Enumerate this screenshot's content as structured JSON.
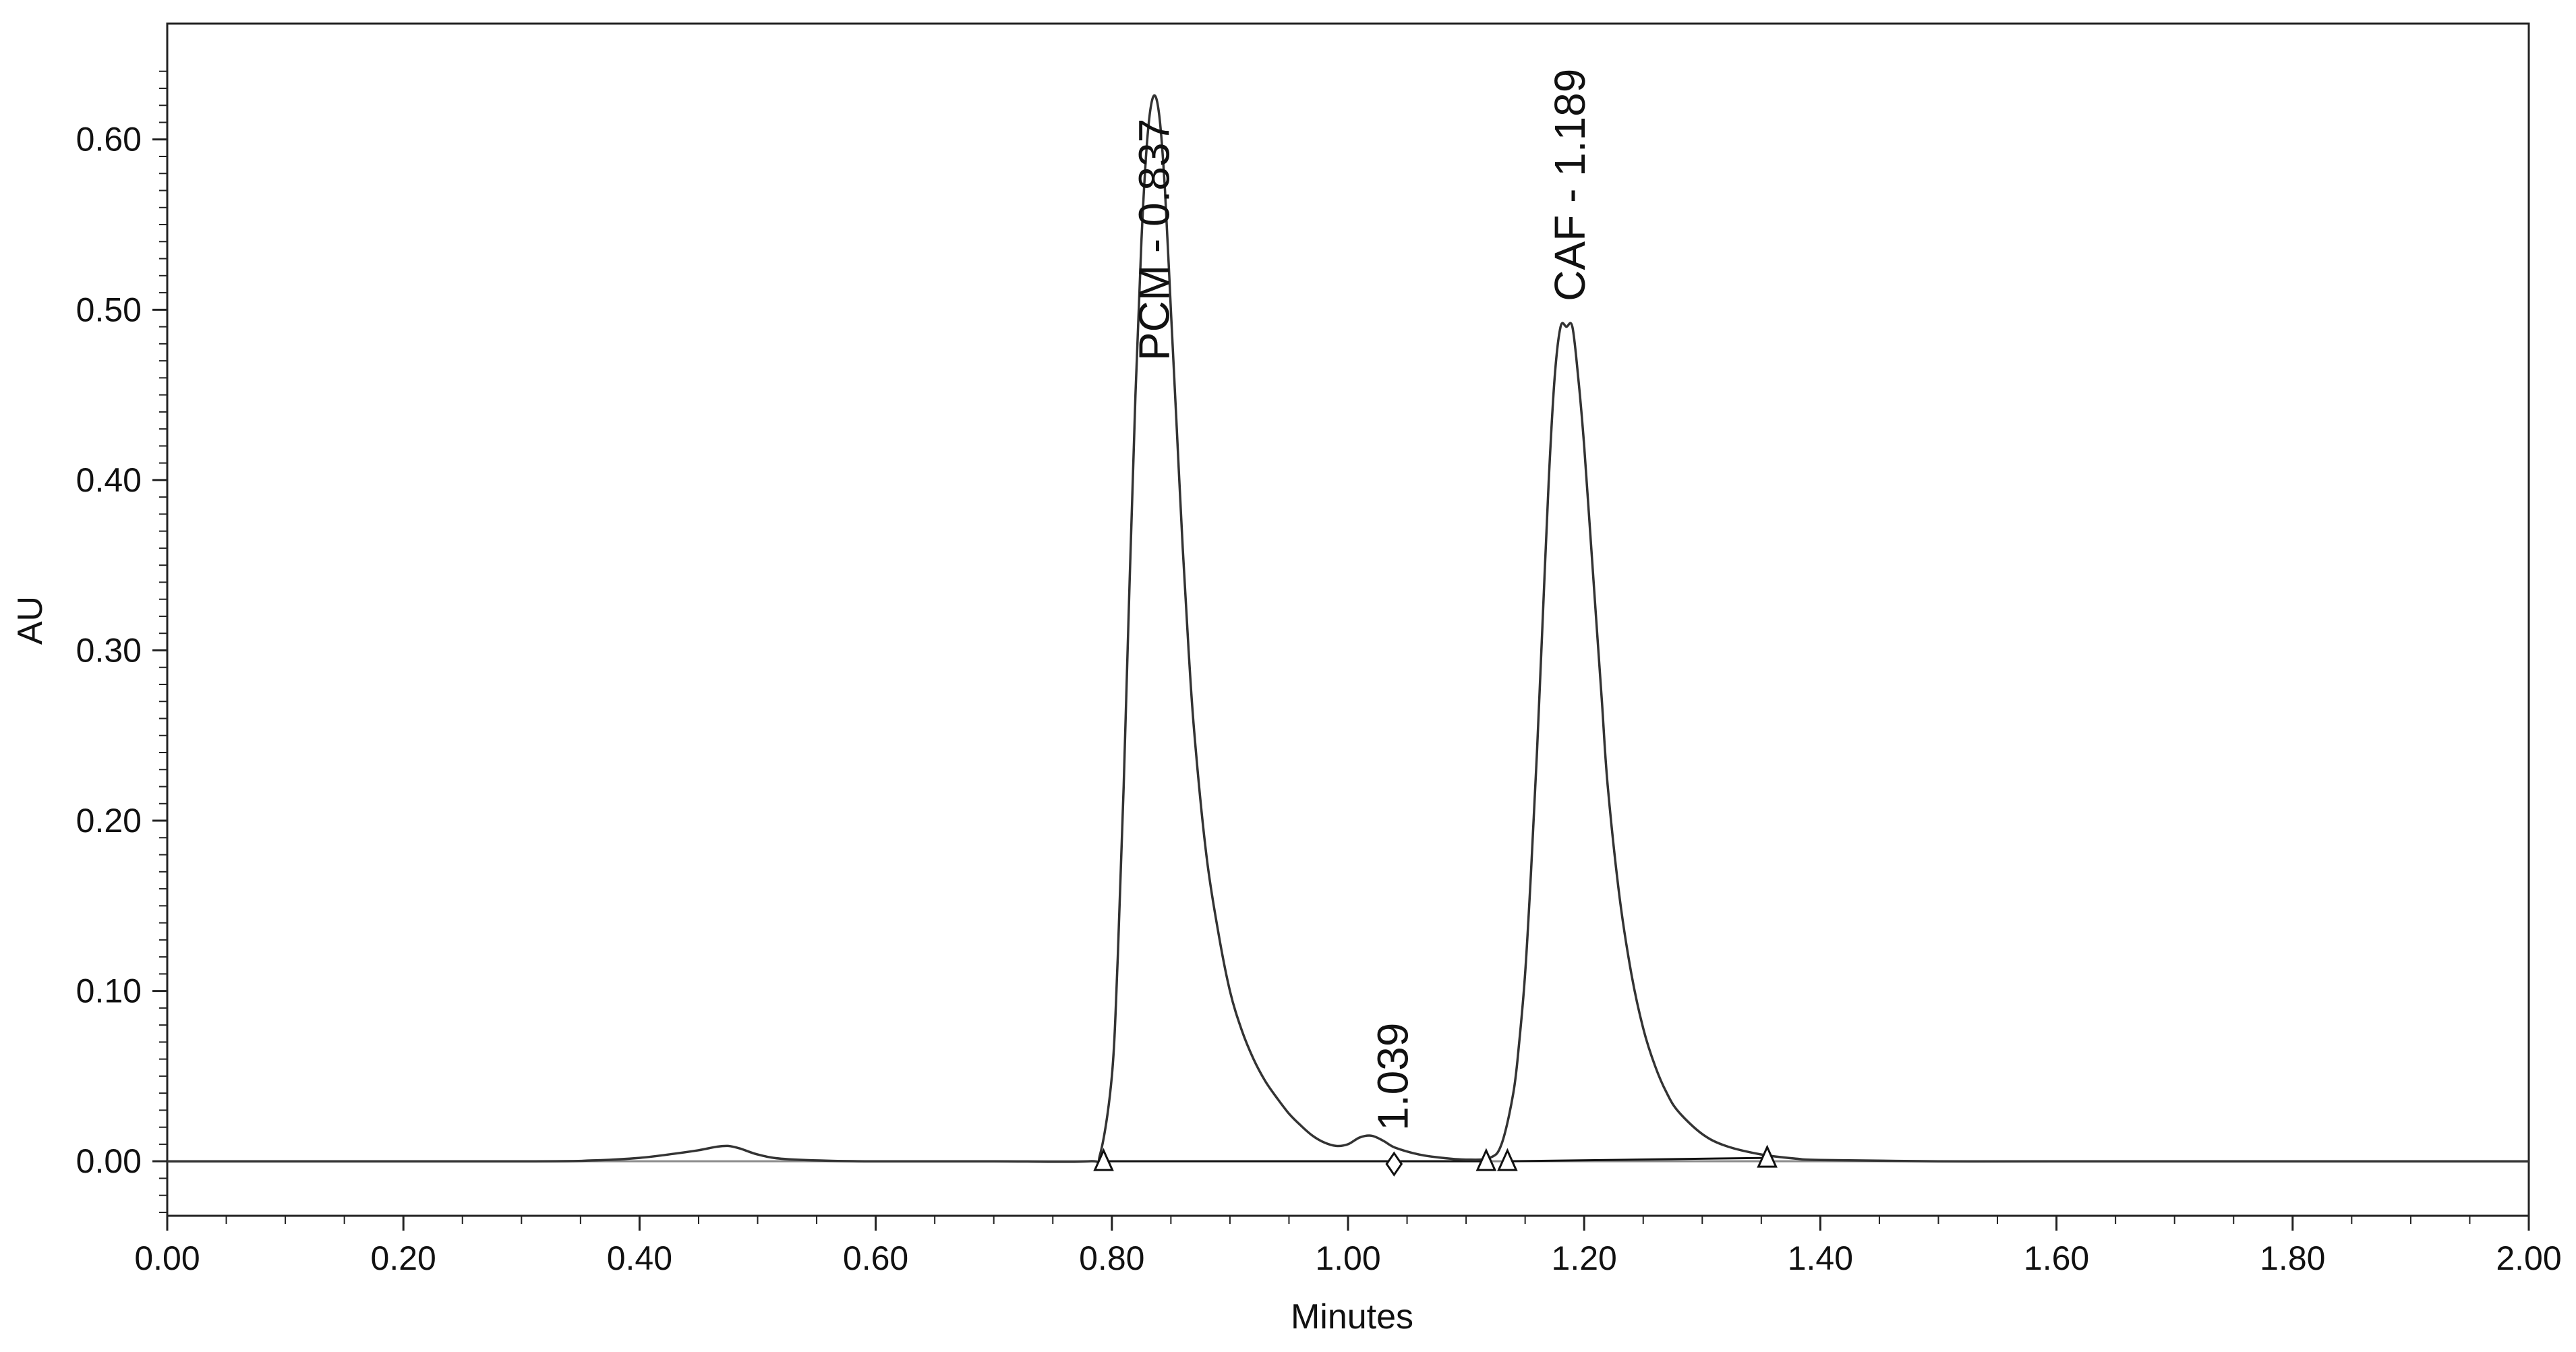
{
  "chart_data": {
    "type": "line",
    "xlabel": "Minutes",
    "ylabel": "AU",
    "xlim": [
      0.0,
      2.0
    ],
    "ylim": [
      -0.032,
      0.668
    ],
    "grid": false,
    "legend": "none",
    "x_ticks": [
      0.0,
      0.2,
      0.4,
      0.6,
      0.8,
      1.0,
      1.2,
      1.4,
      1.6,
      1.8,
      2.0
    ],
    "x_tick_labels": [
      "0.00",
      "0.20",
      "0.40",
      "0.60",
      "0.80",
      "1.00",
      "1.20",
      "1.40",
      "1.60",
      "1.80",
      "2.00"
    ],
    "y_ticks": [
      0.0,
      0.1,
      0.2,
      0.3,
      0.4,
      0.5,
      0.6
    ],
    "y_tick_labels": [
      "0.00",
      "0.10",
      "0.20",
      "0.30",
      "0.40",
      "0.50",
      "0.60"
    ],
    "series": [
      {
        "color": "#333333",
        "x": [
          0.0,
          0.3,
          0.36,
          0.4,
          0.43,
          0.45,
          0.465,
          0.475,
          0.485,
          0.5,
          0.52,
          0.56,
          0.6,
          0.7,
          0.78,
          0.79,
          0.8,
          0.805,
          0.81,
          0.815,
          0.82,
          0.825,
          0.83,
          0.835,
          0.84,
          0.845,
          0.85,
          0.855,
          0.86,
          0.865,
          0.87,
          0.88,
          0.89,
          0.9,
          0.91,
          0.92,
          0.93,
          0.94,
          0.95,
          0.96,
          0.97,
          0.98,
          0.99,
          1.0,
          1.01,
          1.02,
          1.03,
          1.04,
          1.06,
          1.08,
          1.1,
          1.12,
          1.13,
          1.14,
          1.145,
          1.15,
          1.155,
          1.16,
          1.165,
          1.17,
          1.175,
          1.18,
          1.185,
          1.19,
          1.195,
          1.2,
          1.205,
          1.21,
          1.215,
          1.22,
          1.23,
          1.24,
          1.25,
          1.26,
          1.27,
          1.28,
          1.3,
          1.32,
          1.35,
          1.38,
          1.4,
          1.5,
          1.6,
          1.8,
          2.0
        ],
        "y": [
          0.0,
          0.0,
          0.0005,
          0.002,
          0.0045,
          0.0065,
          0.0085,
          0.009,
          0.0075,
          0.004,
          0.0015,
          0.0003,
          0.0,
          0.0,
          0.0,
          0.004,
          0.05,
          0.12,
          0.22,
          0.34,
          0.45,
          0.54,
          0.6,
          0.625,
          0.615,
          0.57,
          0.5,
          0.43,
          0.36,
          0.3,
          0.25,
          0.18,
          0.135,
          0.1,
          0.077,
          0.06,
          0.047,
          0.037,
          0.028,
          0.021,
          0.015,
          0.011,
          0.009,
          0.01,
          0.014,
          0.015,
          0.012,
          0.008,
          0.004,
          0.002,
          0.001,
          0.002,
          0.01,
          0.04,
          0.07,
          0.11,
          0.17,
          0.24,
          0.32,
          0.4,
          0.46,
          0.49,
          0.49,
          0.49,
          0.46,
          0.42,
          0.37,
          0.32,
          0.27,
          0.22,
          0.155,
          0.11,
          0.078,
          0.056,
          0.04,
          0.029,
          0.016,
          0.009,
          0.004,
          0.0015,
          0.0008,
          0.0,
          0.0,
          0.0,
          0.0
        ]
      }
    ],
    "baselines": [
      {
        "x": [
          0.793,
          1.117
        ],
        "y": [
          0.0,
          0.0
        ]
      },
      {
        "x": [
          1.135,
          1.355
        ],
        "y": [
          0.0,
          0.002
        ]
      }
    ],
    "markers": [
      {
        "shape": "triangle",
        "x": 0.793,
        "y": 0.0
      },
      {
        "shape": "diamond",
        "x": 1.039,
        "y": 0.0
      },
      {
        "shape": "triangle",
        "x": 1.117,
        "y": 0.0
      },
      {
        "shape": "triangle",
        "x": 1.135,
        "y": 0.0
      },
      {
        "shape": "triangle",
        "x": 1.355,
        "y": 0.002
      }
    ],
    "peak_labels": [
      {
        "text": "PCM - 0.837",
        "x": 0.837,
        "y": 0.47
      },
      {
        "text": "1.039",
        "x": 1.039,
        "y": 0.018
      },
      {
        "text": "CAF - 1.189",
        "x": 1.189,
        "y": 0.505
      }
    ]
  }
}
